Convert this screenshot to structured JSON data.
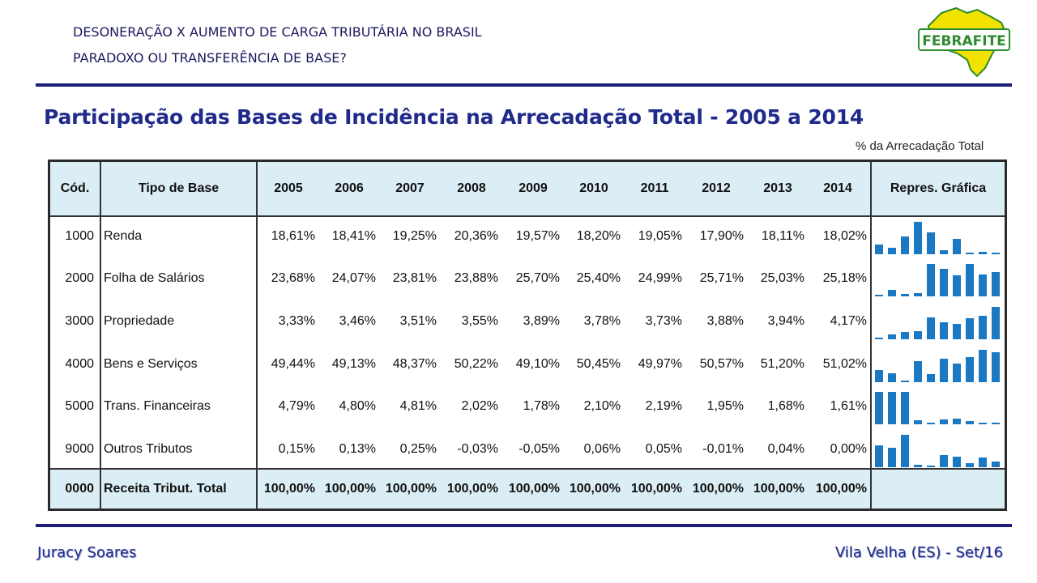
{
  "header": {
    "line1": "DESONERAÇÃO X AUMENTO DE CARGA TRIBUTÁRIA NO BRASIL",
    "line2": "PARADOXO OU TRANSFERÊNCIA DE BASE?",
    "logo_text": "FEBRAFITE"
  },
  "colors": {
    "navy": "#1c1e7a",
    "title_blue": "#1f2a8a",
    "header_band": "#dbeef6",
    "bar_blue": "#1a79c2",
    "logo_green": "#2e8b2e",
    "logo_yellow": "#f2e200"
  },
  "title": "Participação das Bases de Incidência na Arrecadação Total - 2005 a 2014",
  "unit_label": "% da Arrecadação Total",
  "table": {
    "headers": {
      "code": "Cód.",
      "type": "Tipo de Base",
      "years": [
        "2005",
        "2006",
        "2007",
        "2008",
        "2009",
        "2010",
        "2011",
        "2012",
        "2013",
        "2014"
      ],
      "graph": "Repres. Gráfica"
    },
    "rows": [
      {
        "code": "1000",
        "type": "Renda",
        "values": [
          "18,61%",
          "18,41%",
          "19,25%",
          "20,36%",
          "19,57%",
          "18,20%",
          "19,05%",
          "17,90%",
          "18,11%",
          "18,02%"
        ]
      },
      {
        "code": "2000",
        "type": "Folha de Salários",
        "values": [
          "23,68%",
          "24,07%",
          "23,81%",
          "23,88%",
          "25,70%",
          "25,40%",
          "24,99%",
          "25,71%",
          "25,03%",
          "25,18%"
        ]
      },
      {
        "code": "3000",
        "type": "Propriedade",
        "values": [
          "3,33%",
          "3,46%",
          "3,51%",
          "3,55%",
          "3,89%",
          "3,78%",
          "3,73%",
          "3,88%",
          "3,94%",
          "4,17%"
        ]
      },
      {
        "code": "4000",
        "type": "Bens e Serviços",
        "values": [
          "49,44%",
          "49,13%",
          "48,37%",
          "50,22%",
          "49,10%",
          "50,45%",
          "49,97%",
          "50,57%",
          "51,20%",
          "51,02%"
        ]
      },
      {
        "code": "5000",
        "type": "Trans. Financeiras",
        "values": [
          "4,79%",
          "4,80%",
          "4,81%",
          "2,02%",
          "1,78%",
          "2,10%",
          "2,19%",
          "1,95%",
          "1,68%",
          "1,61%"
        ]
      },
      {
        "code": "9000",
        "type": "Outros Tributos",
        "values": [
          "0,15%",
          "0,13%",
          "0,25%",
          "-0,03%",
          "-0,05%",
          "0,06%",
          "0,05%",
          "-0,01%",
          "0,04%",
          "0,00%"
        ]
      }
    ],
    "total": {
      "code": "0000",
      "type": "Receita Tribut. Total",
      "values": [
        "100,00%",
        "100,00%",
        "100,00%",
        "100,00%",
        "100,00%",
        "100,00%",
        "100,00%",
        "100,00%",
        "100,00%",
        "100,00%"
      ]
    }
  },
  "footer": {
    "author": "Juracy Soares",
    "place_date": "Vila Velha (ES) - Set/16"
  }
}
